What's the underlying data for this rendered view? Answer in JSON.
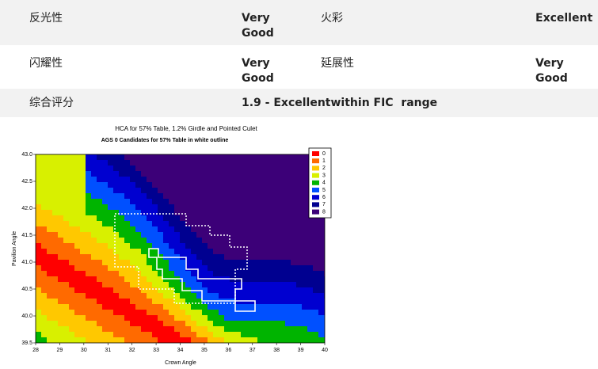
{
  "table": {
    "rows": [
      [
        "反光性",
        "Very Good",
        "火彩",
        "Excellent"
      ],
      [
        "闪耀性",
        "Very Good",
        "延展性",
        "Very Good"
      ],
      [
        "综合评分",
        "1.9 - Excellentwithin FIC  range"
      ]
    ]
  },
  "figure": {
    "title": "HCA for 57% Table, 1.2% Girdle and Pointed Culet",
    "subtitle": "AGS 0 Candidates for 57% Table in white outline",
    "x_label": "Crown Angle",
    "y_label": "Pavilion Angle",
    "x_ticks": [
      "28",
      "29",
      "30",
      "31",
      "32",
      "33",
      "34",
      "35",
      "36",
      "37",
      "38",
      "39",
      "40"
    ],
    "y_ticks": [
      "43.0",
      "42.5",
      "42.0",
      "41.5",
      "41.0",
      "40.5",
      "40.0",
      "39.5"
    ],
    "legend": [
      "0",
      "1",
      "2",
      "3",
      "4",
      "5",
      "6",
      "7",
      "8"
    ]
  }
}
